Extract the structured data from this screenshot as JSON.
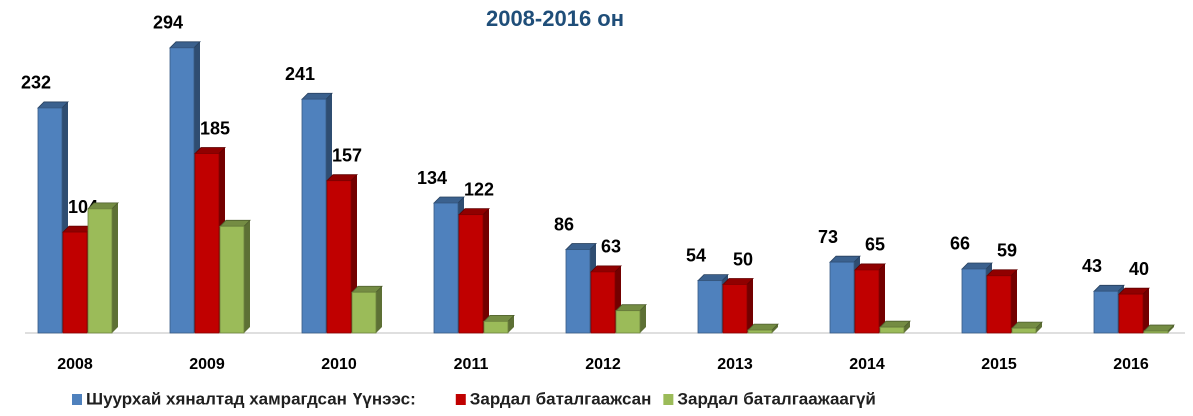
{
  "chart_data": {
    "type": "bar3d",
    "title": "2008-2016 он",
    "categories": [
      "2008",
      "2009",
      "2010",
      "2011",
      "2012",
      "2013",
      "2014",
      "2015",
      "2016"
    ],
    "series": [
      {
        "name": "Шуурхай хяналтад хамрагдсан",
        "color": "#4f81bd",
        "values": [
          232,
          294,
          241,
          134,
          86,
          54,
          73,
          66,
          43
        ]
      },
      {
        "name": "Зардал баталгаажсан",
        "color": "#c00000",
        "values": [
          104,
          185,
          157,
          122,
          63,
          50,
          65,
          59,
          40
        ]
      },
      {
        "name": "Зардал баталгаажаагүй",
        "color": "#9bbb59",
        "values": [
          128,
          110,
          42,
          12,
          23,
          3,
          6,
          5,
          2
        ]
      }
    ],
    "legend_note": "Үүнээс:",
    "labeled_series": [
      0,
      1
    ],
    "ylim": [
      0,
      300
    ]
  }
}
